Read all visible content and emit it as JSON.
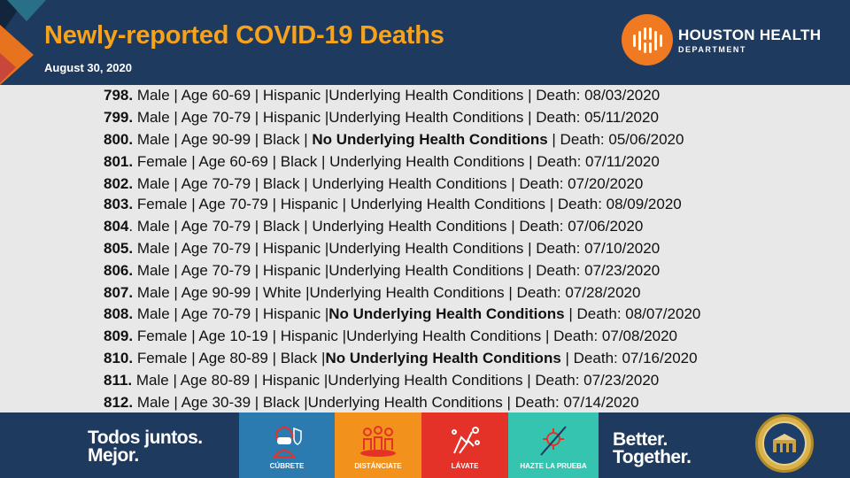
{
  "header": {
    "title": "Newly-reported COVID-19 Deaths",
    "date": "August 30, 2020",
    "logo_line1": "HOUSTON HEALTH",
    "logo_line2": "DEPARTMENT"
  },
  "deaths": [
    {
      "num": "798.",
      "text": " Male | Age 60-69 | Hispanic |Underlying Health Conditions | Death: 08/03/2020"
    },
    {
      "num": "799.",
      "text": " Male | Age 70-79 | Hispanic |Underlying Health Conditions | Death: 05/11/2020"
    },
    {
      "num": "800.",
      "pre": " Male | Age 90-99 | Black | ",
      "bold": "No Underlying Health Conditions",
      "post": " | Death: 05/06/2020"
    },
    {
      "num": "801.",
      "text": " Female | Age 60-69 | Black | Underlying Health Conditions | Death: 07/11/2020"
    },
    {
      "num": "802.",
      "text": " Male | Age 70-79 | Black | Underlying Health Conditions | Death: 07/20/2020"
    },
    {
      "num": "803.",
      "text": " Female | Age 70-79 | Hispanic | Underlying Health Conditions | Death: 08/09/2020"
    },
    {
      "num": "804",
      "text": ". Male | Age 70-79 | Black | Underlying Health Conditions | Death: 07/06/2020"
    },
    {
      "num": "805.",
      "text": " Male | Age 70-79 | Hispanic |Underlying Health Conditions | Death: 07/10/2020"
    },
    {
      "num": "806.",
      "text": " Male | Age 70-79 | Hispanic |Underlying Health Conditions | Death: 07/23/2020"
    },
    {
      "num": "807.",
      "text": " Male | Age 90-99 | White |Underlying Health Conditions | Death: 07/28/2020"
    },
    {
      "num": "808.",
      "pre": " Male | Age 70-79 | Hispanic |",
      "bold": "No Underlying Health Conditions",
      "post": " | Death: 08/07/2020"
    },
    {
      "num": "809.",
      "text": " Female | Age 10-19 | Hispanic |Underlying Health Conditions | Death: 07/08/2020"
    },
    {
      "num": "810.",
      "pre": " Female | Age 80-89 | Black |",
      "bold": "No Underlying Health Conditions",
      "post": " | Death: 07/16/2020"
    },
    {
      "num": "811.",
      "text": " Male | Age 80-89 | Hispanic |Underlying Health Conditions | Death: 07/23/2020"
    },
    {
      "num": "812.",
      "text": " Male | Age 30-39 | Black |Underlying Health Conditions | Death: 07/14/2020"
    }
  ],
  "footer": {
    "slogan_left_1": "Todos juntos.",
    "slogan_left_2": "Mejor.",
    "slogan_right_1": "Better.",
    "slogan_right_2": "Together.",
    "tiles": [
      {
        "label": "CÚBRETE",
        "color": "#2c7bb0",
        "icon": "mask-icon"
      },
      {
        "label": "DISTÁNCIATE",
        "color": "#f2921c",
        "icon": "distance-icon"
      },
      {
        "label": "LÁVATE",
        "color": "#e53228",
        "icon": "handwash-icon"
      },
      {
        "label": "HAZTE LA PRUEBA",
        "color": "#35c4b0",
        "icon": "test-icon"
      }
    ]
  },
  "colors": {
    "navy": "#1f3a5f",
    "title_orange": "#f7a21b",
    "logo_orange": "#ef7a21"
  }
}
